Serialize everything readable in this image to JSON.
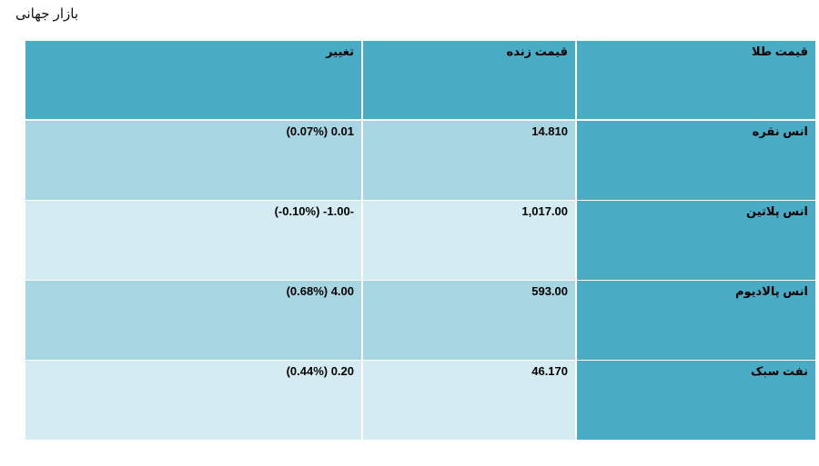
{
  "page": {
    "title": "بازار جهانی"
  },
  "table": {
    "headers": {
      "name": "قیمت طلا",
      "live_price": "قیمت زنده",
      "change": "تغییر"
    },
    "rows": [
      {
        "name": "انس نقره",
        "live_price": "14.810",
        "change": "(0.07%) 0.01"
      },
      {
        "name": "انس پلاتین",
        "live_price": "1,017.00",
        "change": "(-0.10%) -1.00-"
      },
      {
        "name": "انس پالادیوم",
        "live_price": "593.00",
        "change": "(0.68%) 4.00"
      },
      {
        "name": "نفت سبک",
        "live_price": "46.170",
        "change": "(0.44%) 0.20"
      }
    ]
  }
}
